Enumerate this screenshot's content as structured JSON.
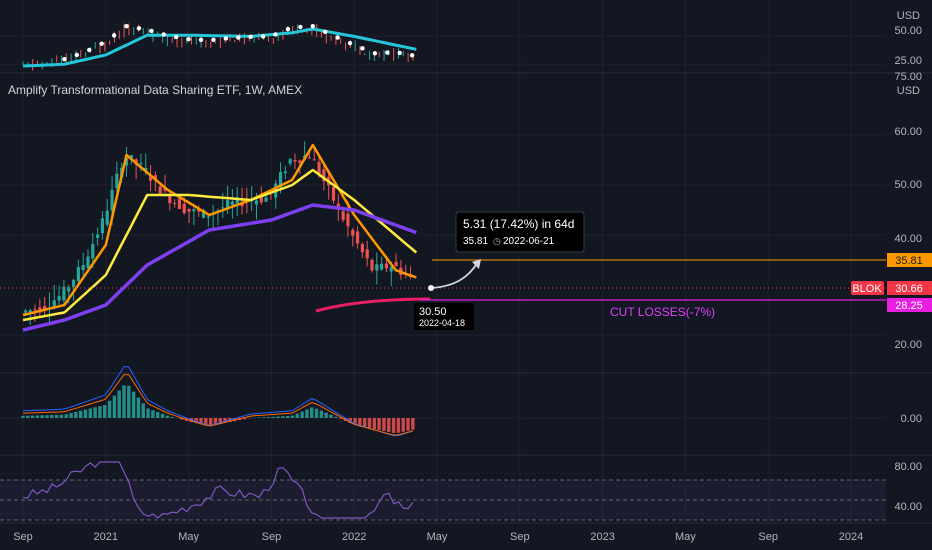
{
  "header": {
    "title": "Amplify Transformational Data Sharing ETF, 1W, AMEX"
  },
  "colors": {
    "background": "#131722",
    "grid": "#1e222d",
    "up": "#26a69a",
    "down": "#ef5350",
    "ema_fast": "#ff9800",
    "ema_mid": "#ffeb3b",
    "ema_slow": "#7e3ff2",
    "target_line": "#ff9800",
    "cutloss_line": "#e91ee3",
    "price_badge": "#f23645",
    "ribbon_pink": "#e91e63",
    "ribbon_cyan": "#26c6da",
    "macd_line": "#2962ff",
    "signal_line": "#ff6d00",
    "rsi_line": "#7e57c2"
  },
  "chart_data": [
    {
      "type": "line",
      "panel": "top-indicator",
      "currency_label": "USD",
      "yticks": [
        50,
        25
      ],
      "ytick_labels": [
        "50.00",
        "25.00"
      ],
      "ylim": [
        18,
        75
      ],
      "cut_label": "75.00"
    },
    {
      "type": "candlestick",
      "panel": "price",
      "title": "Amplify Transformational Data Sharing ETF, 1W, AMEX",
      "currency_label": "USD",
      "x_tick_labels": [
        "Sep",
        "2021",
        "May",
        "Sep",
        "2022",
        "May",
        "Sep",
        "2023",
        "May",
        "Sep",
        "2024"
      ],
      "yticks": [
        60,
        50,
        40,
        20
      ],
      "ytick_labels": [
        "60.00",
        "50.00",
        "40.00",
        "20.00"
      ],
      "ylim": [
        15,
        67
      ],
      "series": [
        {
          "id": "weekly-price",
          "x": [
            "2020-09",
            "2020-10",
            "2020-11",
            "2020-12",
            "2021-01",
            "2021-02",
            "2021-03",
            "2021-04",
            "2021-05",
            "2021-06",
            "2021-07",
            "2021-08",
            "2021-09",
            "2021-10",
            "2021-11",
            "2021-12",
            "2022-01",
            "2022-02",
            "2022-03",
            "2022-04"
          ],
          "values": [
            24.5,
            25.5,
            28,
            34,
            43,
            56,
            53,
            48,
            45,
            44,
            46,
            47,
            47.5,
            55,
            56,
            48,
            40,
            33,
            34,
            30.66
          ]
        },
        {
          "id": "ema-fast",
          "x": [
            "2020-09",
            "2020-11",
            "2021-01",
            "2021-02",
            "2021-04",
            "2021-06",
            "2021-08",
            "2021-10",
            "2021-11",
            "2022-01",
            "2022-03",
            "2022-04"
          ],
          "values": [
            24,
            26,
            38,
            56,
            49,
            44,
            47,
            51,
            58,
            44,
            33,
            31.5
          ]
        },
        {
          "id": "ema-mid",
          "x": [
            "2020-09",
            "2020-11",
            "2021-01",
            "2021-03",
            "2021-05",
            "2021-08",
            "2021-10",
            "2021-11",
            "2022-01",
            "2022-03",
            "2022-04"
          ],
          "values": [
            23,
            24.5,
            32,
            48,
            48,
            47,
            50,
            53,
            47,
            40,
            36.5
          ]
        },
        {
          "id": "ema-slow",
          "x": [
            "2020-09",
            "2020-11",
            "2021-01",
            "2021-03",
            "2021-06",
            "2021-09",
            "2021-11",
            "2022-01",
            "2022-03",
            "2022-04"
          ],
          "values": [
            21,
            23,
            26,
            34,
            41,
            43,
            46,
            45,
            42,
            40.5
          ]
        }
      ],
      "annotations": {
        "measure_label": "5.31 (17.42%) in 64d",
        "measure_sub": "35.81",
        "measure_date": "2022-06-21",
        "low_price": "30.50",
        "low_date": "2022-04-18",
        "cut_losses_label": "CUT LOSSES(-7%)"
      },
      "price_levels": {
        "target": {
          "value": 35.81,
          "label": "35.81"
        },
        "current": {
          "value": 30.66,
          "label": "30.66",
          "ticker": "BLOK"
        },
        "cut_loss": {
          "value": 28.25,
          "label": "28.25"
        }
      }
    },
    {
      "type": "bar",
      "panel": "macd",
      "yticks": [
        0
      ],
      "ytick_labels": [
        "0.00"
      ],
      "ylim": [
        -4,
        6
      ]
    },
    {
      "type": "line",
      "panel": "rsi",
      "yticks": [
        80,
        40
      ],
      "ytick_labels": [
        "80.00",
        "40.00"
      ],
      "ylim": [
        30,
        92
      ]
    }
  ]
}
